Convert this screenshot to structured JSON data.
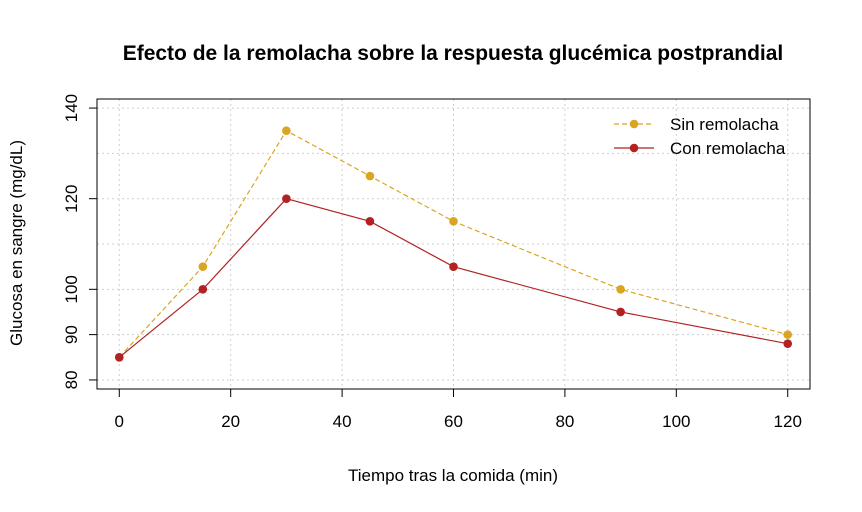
{
  "chart_data": {
    "type": "line",
    "title": "Efecto de la remolacha sobre la respuesta glucémica postprandial",
    "xlabel": "Tiempo tras la comida (min)",
    "ylabel": "Glucosa en sangre (mg/dL)",
    "xlim": [
      -4,
      124
    ],
    "ylim": [
      78,
      142
    ],
    "x_ticks": [
      0,
      20,
      40,
      60,
      80,
      100,
      120
    ],
    "y_ticks": [
      80,
      90,
      100,
      120,
      140
    ],
    "grid_x": [
      0,
      20,
      40,
      60,
      80,
      100,
      120
    ],
    "grid_y": [
      80,
      90,
      100,
      110,
      120,
      130,
      140
    ],
    "grid": true,
    "legend_position": "top-right",
    "x": [
      0,
      15,
      30,
      45,
      60,
      90,
      120
    ],
    "series": [
      {
        "name": "Sin remolacha",
        "values": [
          85,
          105,
          135,
          125,
          115,
          100,
          90
        ],
        "color": "#DAA520",
        "line_style": "dashed"
      },
      {
        "name": "Con remolacha",
        "values": [
          85,
          100,
          120,
          115,
          105,
          95,
          88
        ],
        "color": "#B22222",
        "line_style": "solid"
      }
    ]
  }
}
